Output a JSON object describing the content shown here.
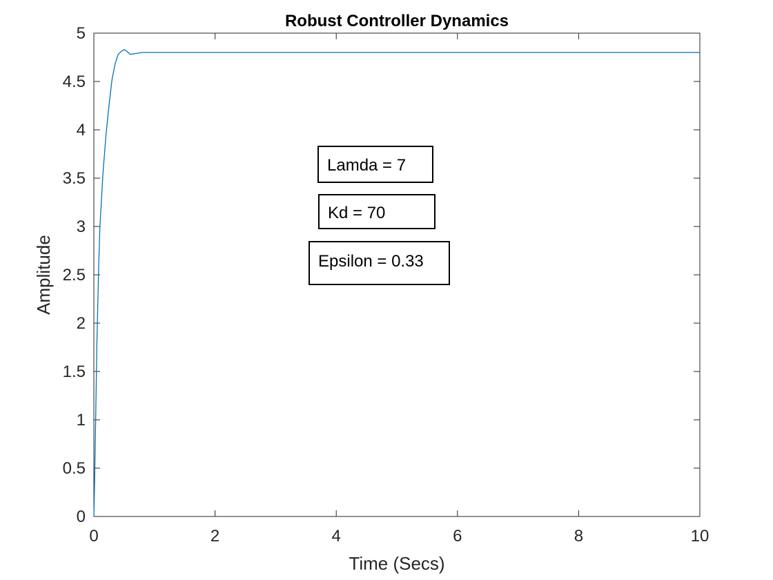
{
  "chart_data": {
    "type": "line",
    "title": "Robust Controller Dynamics",
    "xlabel": "Time (Secs)",
    "ylabel": "Amplitude",
    "xlim": [
      0,
      10
    ],
    "ylim": [
      0,
      5
    ],
    "xticks": [
      0,
      2,
      4,
      6,
      8,
      10
    ],
    "yticks": [
      0,
      0.5,
      1,
      1.5,
      2,
      2.5,
      3,
      3.5,
      4,
      4.5,
      5
    ],
    "xtick_labels": [
      "0",
      "2",
      "4",
      "6",
      "8",
      "10"
    ],
    "ytick_labels": [
      "0",
      "0.5",
      "1",
      "1.5",
      "2",
      "2.5",
      "3",
      "3.5",
      "4",
      "4.5",
      "5"
    ],
    "grid": false,
    "series": [
      {
        "color": "#0072bd",
        "x": [
          0,
          0.01,
          0.03,
          0.05,
          0.08,
          0.1,
          0.15,
          0.2,
          0.25,
          0.3,
          0.35,
          0.4,
          0.45,
          0.5,
          0.55,
          0.6,
          0.7,
          0.8,
          0.9,
          1.0,
          2.0,
          4.0,
          6.0,
          8.0,
          10.0
        ],
        "y": [
          0,
          0.3,
          1.0,
          1.8,
          2.6,
          3.0,
          3.55,
          3.95,
          4.25,
          4.52,
          4.68,
          4.78,
          4.81,
          4.83,
          4.81,
          4.78,
          4.79,
          4.8,
          4.8,
          4.8,
          4.8,
          4.8,
          4.8,
          4.8,
          4.8
        ]
      }
    ],
    "annotations": [
      {
        "text": "Lamda = 7"
      },
      {
        "text": "Kd = 70"
      },
      {
        "text": "Epsilon = 0.33"
      }
    ]
  }
}
